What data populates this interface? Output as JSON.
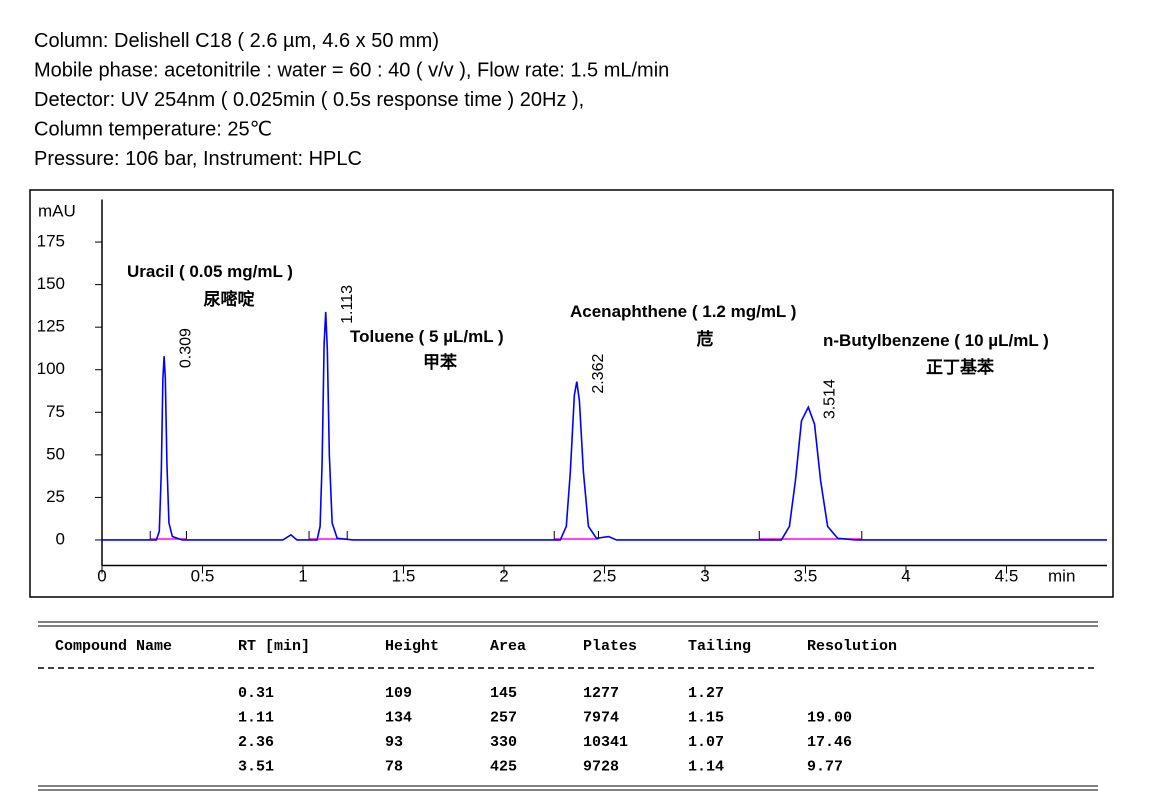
{
  "header": {
    "lines": [
      "Column: Delishell C18 ( 2.6 µm, 4.6 x 50 mm)",
      "Mobile phase: acetonitrile : water = 60 : 40 ( v/v ), Flow rate: 1.5 mL/min",
      "Detector: UV 254nm ( 0.025min ( 0.5s response time ) 20Hz ),",
      "Column temperature: 25℃",
      "Pressure: 106 bar, Instrument: HPLC"
    ]
  },
  "chart_data": {
    "type": "line",
    "color": "#0000ff",
    "y_label": "mAU",
    "x_label": "min",
    "xlim": [
      0,
      5
    ],
    "xticks": [
      0,
      0.5,
      1,
      1.5,
      2,
      2.5,
      3,
      3.5,
      4,
      4.5
    ],
    "ylim": [
      -15,
      200
    ],
    "yticks": [
      0,
      25,
      50,
      75,
      100,
      125,
      150,
      175
    ],
    "x": [
      0,
      0.25,
      0.27,
      0.285,
      0.295,
      0.303,
      0.309,
      0.315,
      0.323,
      0.333,
      0.35,
      0.4,
      0.9,
      0.94,
      0.97,
      1.07,
      1.085,
      1.095,
      1.105,
      1.113,
      1.121,
      1.131,
      1.145,
      1.17,
      1.25,
      2.28,
      2.31,
      2.33,
      2.35,
      2.362,
      2.375,
      2.395,
      2.42,
      2.46,
      2.52,
      2.56,
      3.38,
      3.42,
      3.45,
      3.48,
      3.514,
      3.545,
      3.575,
      3.61,
      3.66,
      3.75,
      5
    ],
    "values": [
      0,
      0,
      0,
      5,
      40,
      95,
      108,
      95,
      45,
      10,
      2,
      0,
      0,
      3,
      0,
      0,
      8,
      45,
      115,
      134,
      112,
      50,
      10,
      1,
      0,
      0,
      8,
      40,
      85,
      93,
      82,
      40,
      8,
      1,
      2,
      0,
      0,
      8,
      35,
      70,
      78,
      68,
      35,
      8,
      1,
      0,
      0
    ],
    "peak_rt": [
      0.309,
      1.113,
      2.362,
      3.514
    ],
    "integration": [
      [
        0.24,
        0.42
      ],
      [
        1.03,
        1.22
      ],
      [
        2.25,
        2.47
      ],
      [
        3.27,
        3.78
      ]
    ],
    "integration_color": "#ff00ff",
    "annotations": [
      [
        "Uracil ( 0.05 mg/mL )",
        "尿嘧啶"
      ],
      [
        "Toluene ( 5 µL/mL )",
        "甲苯"
      ],
      [
        "Acenaphthene ( 1.2 mg/mL )",
        "苊"
      ],
      [
        "n-Butylbenzene ( 10 µL/mL )",
        "正丁基苯"
      ]
    ]
  },
  "table": {
    "header": [
      "Compound Name",
      "RT [min]",
      "Height",
      "Area",
      "Plates",
      "Tailing",
      "Resolution"
    ],
    "rows": [
      [
        null,
        "0.31",
        "109",
        "145",
        "1277",
        "1.27",
        null
      ],
      [
        null,
        "1.11",
        "134",
        "257",
        "7974",
        "1.15",
        "19.00"
      ],
      [
        null,
        "2.36",
        "93",
        "330",
        "10341",
        "1.07",
        "17.46"
      ],
      [
        null,
        "3.51",
        "78",
        "425",
        "9728",
        "1.14",
        "9.77"
      ]
    ]
  }
}
